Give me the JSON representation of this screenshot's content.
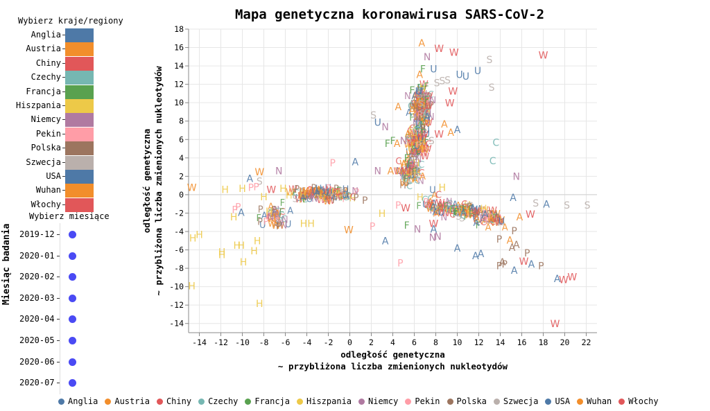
{
  "left_panel": {
    "regions_title": "Wybierz kraje/regiony",
    "months_title": "Wybierz miesiące",
    "months_axis_title": "Miesiąc badania",
    "regions": [
      {
        "label": "Anglia",
        "color": "#4e79a7"
      },
      {
        "label": "Austria",
        "color": "#f28e2b"
      },
      {
        "label": "Chiny",
        "color": "#e15759"
      },
      {
        "label": "Czechy",
        "color": "#76b7b2"
      },
      {
        "label": "Francja",
        "color": "#59a14f"
      },
      {
        "label": "Hiszpania",
        "color": "#edc948"
      },
      {
        "label": "Niemcy",
        "color": "#b07aa1"
      },
      {
        "label": "Pekin",
        "color": "#ff9da7"
      },
      {
        "label": "Polska",
        "color": "#9c755f"
      },
      {
        "label": "Szwecja",
        "color": "#bab0ac"
      },
      {
        "label": "USA",
        "color": "#4e79a7"
      },
      {
        "label": "Wuhan",
        "color": "#f28e2b"
      },
      {
        "label": "Włochy",
        "color": "#e15759"
      }
    ],
    "months": [
      "2019-12",
      "2020-01",
      "2020-02",
      "2020-03",
      "2020-04",
      "2020-05",
      "2020-06",
      "2020-07"
    ],
    "month_dot_color": "#4a4af4"
  },
  "chart_data": {
    "type": "scatter",
    "title": "Mapa genetyczna koronawirusa SARS-CoV-2",
    "xlabel": "odległość genetyczna\n~ przybliżona liczba zmienionych nukleotydów",
    "ylabel": "odległość genetyczna\n~ przybliżona liczba zmienionych nukleotydów",
    "xlim": [
      -15,
      23
    ],
    "ylim": [
      -15,
      18
    ],
    "xticks": [
      -14,
      -12,
      -10,
      -8,
      -6,
      -4,
      -2,
      0,
      2,
      4,
      6,
      8,
      10,
      12,
      14,
      16,
      18,
      20,
      22
    ],
    "yticks": [
      -14,
      -12,
      -10,
      -8,
      -6,
      -4,
      -2,
      0,
      2,
      4,
      6,
      8,
      10,
      12,
      14,
      16,
      18
    ],
    "grid": true,
    "marker": "country initial letter",
    "series": [
      {
        "name": "Anglia",
        "letter": "A",
        "color": "#4e79a7"
      },
      {
        "name": "Austria",
        "letter": "A",
        "color": "#f28e2b"
      },
      {
        "name": "Chiny",
        "letter": "C",
        "color": "#e15759"
      },
      {
        "name": "Czechy",
        "letter": "C",
        "color": "#76b7b2"
      },
      {
        "name": "Francja",
        "letter": "F",
        "color": "#59a14f"
      },
      {
        "name": "Hiszpania",
        "letter": "H",
        "color": "#edc948"
      },
      {
        "name": "Niemcy",
        "letter": "N",
        "color": "#b07aa1"
      },
      {
        "name": "Pekin",
        "letter": "P",
        "color": "#ff9da7"
      },
      {
        "name": "Polska",
        "letter": "P",
        "color": "#9c755f"
      },
      {
        "name": "Szwecja",
        "letter": "S",
        "color": "#bab0ac"
      },
      {
        "name": "USA",
        "letter": "U",
        "color": "#4e79a7"
      },
      {
        "name": "Wuhan",
        "letter": "W",
        "color": "#f28e2b"
      },
      {
        "name": "Włochy",
        "letter": "W",
        "color": "#e15759"
      }
    ],
    "points": [
      {
        "t": "A",
        "c": "#f28e2b",
        "x": 6.7,
        "y": 16.4
      },
      {
        "t": "W",
        "c": "#e15759",
        "x": 8.3,
        "y": 15.8
      },
      {
        "t": "W",
        "c": "#e15759",
        "x": 9.7,
        "y": 15.4
      },
      {
        "t": "N",
        "c": "#b07aa1",
        "x": 7.2,
        "y": 14.9
      },
      {
        "t": "A",
        "c": "#f28e2b",
        "x": 6.5,
        "y": 13.0
      },
      {
        "t": "U",
        "c": "#4e79a7",
        "x": 7.8,
        "y": 13.6
      },
      {
        "t": "U",
        "c": "#4e79a7",
        "x": 10.2,
        "y": 13.0
      },
      {
        "t": "U",
        "c": "#4e79a7",
        "x": 10.8,
        "y": 12.8
      },
      {
        "t": "U",
        "c": "#4e79a7",
        "x": 11.9,
        "y": 13.4
      },
      {
        "t": "S",
        "c": "#bab0ac",
        "x": 13.0,
        "y": 14.6
      },
      {
        "t": "W",
        "c": "#e15759",
        "x": 18.0,
        "y": 15.1
      },
      {
        "t": "S",
        "c": "#bab0ac",
        "x": 13.2,
        "y": 11.6
      },
      {
        "t": "F",
        "c": "#59a14f",
        "x": 6.8,
        "y": 13.6
      },
      {
        "t": "F",
        "c": "#59a14f",
        "x": 5.8,
        "y": 11.3
      },
      {
        "t": "U",
        "c": "#4e79a7",
        "x": 6.4,
        "y": 11.2
      },
      {
        "t": "S",
        "c": "#bab0ac",
        "x": 8.1,
        "y": 12.1
      },
      {
        "t": "S",
        "c": "#bab0ac",
        "x": 8.6,
        "y": 12.3
      },
      {
        "t": "S",
        "c": "#bab0ac",
        "x": 9.1,
        "y": 12.4
      },
      {
        "t": "W",
        "c": "#e15759",
        "x": 9.6,
        "y": 11.2
      },
      {
        "t": "W",
        "c": "#e15759",
        "x": 9.3,
        "y": 9.9
      },
      {
        "t": "A",
        "c": "#f28e2b",
        "x": 4.5,
        "y": 9.5
      },
      {
        "t": "A",
        "c": "#f28e2b",
        "x": 5.8,
        "y": 9.1
      },
      {
        "t": "S",
        "c": "#bab0ac",
        "x": 2.2,
        "y": 8.6
      },
      {
        "t": "U",
        "c": "#4e79a7",
        "x": 2.6,
        "y": 7.8
      },
      {
        "t": "N",
        "c": "#b07aa1",
        "x": 3.3,
        "y": 7.3
      },
      {
        "t": "A",
        "c": "#f28e2b",
        "x": 8.8,
        "y": 7.6
      },
      {
        "t": "W",
        "c": "#e15759",
        "x": 8.3,
        "y": 6.5
      },
      {
        "t": "A",
        "c": "#4e79a7",
        "x": 10.0,
        "y": 7.0
      },
      {
        "t": "A",
        "c": "#f28e2b",
        "x": 9.4,
        "y": 6.7
      },
      {
        "t": "F",
        "c": "#59a14f",
        "x": 3.5,
        "y": 5.5
      },
      {
        "t": "F",
        "c": "#59a14f",
        "x": 4.0,
        "y": 5.8
      },
      {
        "t": "A",
        "c": "#f28e2b",
        "x": 4.4,
        "y": 5.5
      },
      {
        "t": "N",
        "c": "#b07aa1",
        "x": 5.0,
        "y": 5.8
      },
      {
        "t": "S",
        "c": "#bab0ac",
        "x": 5.5,
        "y": 6.0
      },
      {
        "t": "S",
        "c": "#bab0ac",
        "x": 7.6,
        "y": 5.8
      },
      {
        "t": "C",
        "c": "#76b7b2",
        "x": 13.6,
        "y": 5.6
      },
      {
        "t": "C",
        "c": "#76b7b2",
        "x": 13.3,
        "y": 3.6
      },
      {
        "t": "F",
        "c": "#59a14f",
        "x": 5.3,
        "y": 3.9
      },
      {
        "t": "F",
        "c": "#59a14f",
        "x": 5.6,
        "y": 3.3
      },
      {
        "t": "P",
        "c": "#ff9da7",
        "x": -1.6,
        "y": 3.4
      },
      {
        "t": "A",
        "c": "#4e79a7",
        "x": 0.5,
        "y": 3.5
      },
      {
        "t": "N",
        "c": "#b07aa1",
        "x": 2.6,
        "y": 2.5
      },
      {
        "t": "A",
        "c": "#f28e2b",
        "x": 3.8,
        "y": 2.5
      },
      {
        "t": "W",
        "c": "#f28e2b",
        "x": -8.4,
        "y": 2.4
      },
      {
        "t": "N",
        "c": "#b07aa1",
        "x": -6.6,
        "y": 2.5
      },
      {
        "t": "A",
        "c": "#4e79a7",
        "x": -9.3,
        "y": 1.7
      },
      {
        "t": "S",
        "c": "#bab0ac",
        "x": -8.4,
        "y": 1.4
      },
      {
        "t": "N",
        "c": "#b07aa1",
        "x": 15.5,
        "y": 1.9
      },
      {
        "t": "W",
        "c": "#f28e2b",
        "x": -14.7,
        "y": 0.7
      },
      {
        "t": "H",
        "c": "#edc948",
        "x": -11.6,
        "y": 0.5
      },
      {
        "t": "H",
        "c": "#edc948",
        "x": -10.0,
        "y": 0.6
      },
      {
        "t": "H",
        "c": "#edc948",
        "x": -8.0,
        "y": -0.3
      },
      {
        "t": "H",
        "c": "#edc948",
        "x": -6.2,
        "y": 0.6
      },
      {
        "t": "H",
        "c": "#edc948",
        "x": 8.6,
        "y": 0.7
      },
      {
        "t": "P",
        "c": "#ff9da7",
        "x": -9.2,
        "y": 0.7
      },
      {
        "t": "P",
        "c": "#ff9da7",
        "x": -8.7,
        "y": 0.8
      },
      {
        "t": "W",
        "c": "#e15759",
        "x": -7.3,
        "y": 0.5
      },
      {
        "t": "A",
        "c": "#4e79a7",
        "x": 15.2,
        "y": -0.4
      },
      {
        "t": "S",
        "c": "#bab0ac",
        "x": 17.3,
        "y": -1.0
      },
      {
        "t": "A",
        "c": "#4e79a7",
        "x": 18.3,
        "y": -1.1
      },
      {
        "t": "S",
        "c": "#bab0ac",
        "x": 20.2,
        "y": -1.2
      },
      {
        "t": "S",
        "c": "#bab0ac",
        "x": 22.1,
        "y": -1.2
      },
      {
        "t": "W",
        "c": "#e15759",
        "x": 16.8,
        "y": -2.2
      },
      {
        "t": "A",
        "c": "#f28e2b",
        "x": 15.8,
        "y": -2.5
      },
      {
        "t": "P",
        "c": "#ff9da7",
        "x": -10.4,
        "y": -1.4
      },
      {
        "t": "P",
        "c": "#ff9da7",
        "x": -10.7,
        "y": -1.7
      },
      {
        "t": "H",
        "c": "#edc948",
        "x": -10.8,
        "y": -2.5
      },
      {
        "t": "A",
        "c": "#4e79a7",
        "x": -10.1,
        "y": -2.0
      },
      {
        "t": "H",
        "c": "#edc948",
        "x": -7.5,
        "y": -1.9
      },
      {
        "t": "P",
        "c": "#9c755f",
        "x": -1.4,
        "y": -0.6
      },
      {
        "t": "P",
        "c": "#9c755f",
        "x": 1.4,
        "y": -0.7
      },
      {
        "t": "H",
        "c": "#edc948",
        "x": 3.0,
        "y": -2.1
      },
      {
        "t": "P",
        "c": "#ff9da7",
        "x": 4.5,
        "y": -1.2
      },
      {
        "t": "W",
        "c": "#e15759",
        "x": 5.2,
        "y": -1.5
      },
      {
        "t": "W",
        "c": "#f28e2b",
        "x": -0.1,
        "y": -3.9
      },
      {
        "t": "P",
        "c": "#ff9da7",
        "x": 2.1,
        "y": -3.5
      },
      {
        "t": "F",
        "c": "#59a14f",
        "x": 5.3,
        "y": -3.4
      },
      {
        "t": "N",
        "c": "#b07aa1",
        "x": 6.3,
        "y": -3.8
      },
      {
        "t": "W",
        "c": "#e15759",
        "x": 7.8,
        "y": -3.2
      },
      {
        "t": "A",
        "c": "#4e79a7",
        "x": 3.3,
        "y": -5.1
      },
      {
        "t": "H",
        "c": "#edc948",
        "x": -4.3,
        "y": -3.2
      },
      {
        "t": "H",
        "c": "#edc948",
        "x": -3.6,
        "y": -3.2
      },
      {
        "t": "H",
        "c": "#edc948",
        "x": -8.6,
        "y": -5.1
      },
      {
        "t": "H",
        "c": "#edc948",
        "x": -8.9,
        "y": -6.2
      },
      {
        "t": "H",
        "c": "#edc948",
        "x": -10.1,
        "y": -5.6
      },
      {
        "t": "H",
        "c": "#edc948",
        "x": -10.5,
        "y": -5.6
      },
      {
        "t": "H",
        "c": "#edc948",
        "x": -11.9,
        "y": -6.3
      },
      {
        "t": "H",
        "c": "#edc948",
        "x": -11.9,
        "y": -6.6
      },
      {
        "t": "H",
        "c": "#edc948",
        "x": -9.9,
        "y": -7.4
      },
      {
        "t": "H",
        "c": "#edc948",
        "x": -14.6,
        "y": -4.8
      },
      {
        "t": "H",
        "c": "#edc948",
        "x": -14.0,
        "y": -4.4
      },
      {
        "t": "H",
        "c": "#edc948",
        "x": -14.7,
        "y": -10.0
      },
      {
        "t": "H",
        "c": "#edc948",
        "x": -8.4,
        "y": -11.9
      },
      {
        "t": "A",
        "c": "#4e79a7",
        "x": 10.0,
        "y": -5.9
      },
      {
        "t": "A",
        "c": "#4e79a7",
        "x": 11.7,
        "y": -6.7
      },
      {
        "t": "A",
        "c": "#4e79a7",
        "x": 12.2,
        "y": -6.5
      },
      {
        "t": "P",
        "c": "#ff9da7",
        "x": 4.7,
        "y": -7.5
      },
      {
        "t": "N",
        "c": "#b07aa1",
        "x": 7.7,
        "y": -4.7
      },
      {
        "t": "N",
        "c": "#b07aa1",
        "x": 8.2,
        "y": -4.6
      },
      {
        "t": "A",
        "c": "#4e79a7",
        "x": 7.8,
        "y": -3.8
      },
      {
        "t": "P",
        "c": "#9c755f",
        "x": 13.9,
        "y": -4.9
      },
      {
        "t": "P",
        "c": "#9c755f",
        "x": 15.3,
        "y": -4.0
      },
      {
        "t": "A",
        "c": "#f28e2b",
        "x": 14.9,
        "y": -5.0
      },
      {
        "t": "A",
        "c": "#9c755f",
        "x": 15.1,
        "y": -5.8
      },
      {
        "t": "A",
        "c": "#9c755f",
        "x": 15.5,
        "y": -5.5
      },
      {
        "t": "P",
        "c": "#9c755f",
        "x": 16.5,
        "y": -6.4
      },
      {
        "t": "W",
        "c": "#e15759",
        "x": 16.2,
        "y": -7.3
      },
      {
        "t": "A",
        "c": "#9c755f",
        "x": 14.2,
        "y": -7.4
      },
      {
        "t": "P",
        "c": "#9c755f",
        "x": 13.9,
        "y": -7.8
      },
      {
        "t": "P",
        "c": "#9c755f",
        "x": 14.4,
        "y": -7.6
      },
      {
        "t": "A",
        "c": "#4e79a7",
        "x": 16.9,
        "y": -7.6
      },
      {
        "t": "P",
        "c": "#9c755f",
        "x": 17.8,
        "y": -7.8
      },
      {
        "t": "A",
        "c": "#4e79a7",
        "x": 15.3,
        "y": -8.3
      },
      {
        "t": "A",
        "c": "#4e79a7",
        "x": 19.3,
        "y": -9.2
      },
      {
        "t": "W",
        "c": "#e15759",
        "x": 19.9,
        "y": -9.3
      },
      {
        "t": "W",
        "c": "#e15759",
        "x": 20.7,
        "y": -9.0
      },
      {
        "t": "W",
        "c": "#e15759",
        "x": 19.1,
        "y": -14.1
      }
    ],
    "clusters": [
      {
        "cx": 6.7,
        "cy": 9.5,
        "sx": 0.6,
        "sy": 1.6,
        "n": 160
      },
      {
        "cx": 6.4,
        "cy": 5.5,
        "sx": 0.7,
        "sy": 1.2,
        "n": 100
      },
      {
        "cx": 5.5,
        "cy": 2.3,
        "sx": 0.8,
        "sy": 1.0,
        "n": 80
      },
      {
        "cx": -2.5,
        "cy": 0.0,
        "sx": 2.2,
        "sy": 0.45,
        "n": 130
      },
      {
        "cx": -7.0,
        "cy": -2.4,
        "sx": 1.0,
        "sy": 0.9,
        "n": 45
      },
      {
        "cx": 10.5,
        "cy": -1.8,
        "sx": 1.6,
        "sy": 0.5,
        "n": 100
      },
      {
        "cx": 13.2,
        "cy": -2.8,
        "sx": 1.0,
        "sy": 0.5,
        "n": 50
      },
      {
        "cx": 7.5,
        "cy": -1.0,
        "sx": 0.9,
        "sy": 1.0,
        "n": 30
      }
    ]
  },
  "bottom_legend": [
    {
      "label": "Anglia",
      "color": "#4e79a7"
    },
    {
      "label": "Austria",
      "color": "#f28e2b"
    },
    {
      "label": "Chiny",
      "color": "#e15759"
    },
    {
      "label": "Czechy",
      "color": "#76b7b2"
    },
    {
      "label": "Francja",
      "color": "#59a14f"
    },
    {
      "label": "Hiszpania",
      "color": "#edc948"
    },
    {
      "label": "Niemcy",
      "color": "#b07aa1"
    },
    {
      "label": "Pekin",
      "color": "#ff9da7"
    },
    {
      "label": "Polska",
      "color": "#9c755f"
    },
    {
      "label": "Szwecja",
      "color": "#bab0ac"
    },
    {
      "label": "USA",
      "color": "#4e79a7"
    },
    {
      "label": "Wuhan",
      "color": "#f28e2b"
    },
    {
      "label": "Włochy",
      "color": "#e15759"
    }
  ]
}
